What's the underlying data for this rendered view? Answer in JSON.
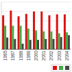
{
  "chart_data": {
    "type": "bar",
    "categories": [
      "1995",
      "1997",
      "1998",
      "1999",
      "2000",
      "2001",
      "2002",
      "2003",
      "2004"
    ],
    "series": [
      {
        "color": "#dd1111",
        "values": [
          0.72,
          0.82,
          0.7,
          0.75,
          0.8,
          0.8,
          0.72,
          0.74,
          0.74
        ]
      },
      {
        "color": "#44aa44",
        "values": [
          0.5,
          0.5,
          0.5,
          0.44,
          0.4,
          0.38,
          0.38,
          0.34,
          0.36
        ]
      },
      {
        "color": "#444444",
        "values": [
          0.25,
          0.22,
          0.12,
          0.2,
          0.2,
          0.22,
          0.22,
          0.26,
          0.3
        ]
      }
    ],
    "ylim": [
      0,
      1.0
    ],
    "yticks": [
      0,
      0.2,
      0.4,
      0.6,
      0.8,
      1.0
    ],
    "grid": true,
    "tick_labels": "x",
    "legend": "lower right"
  }
}
